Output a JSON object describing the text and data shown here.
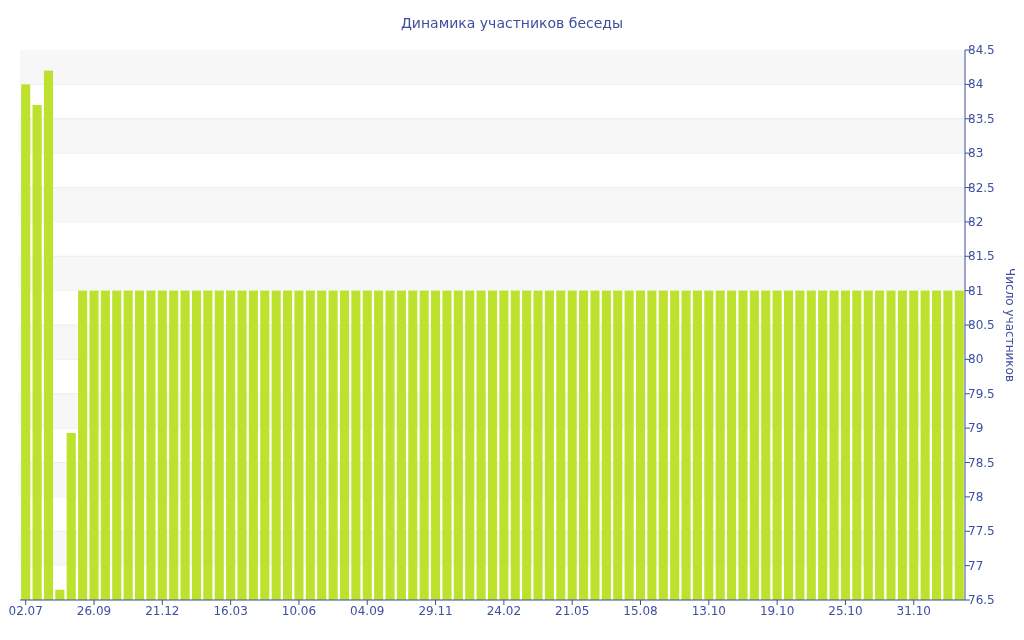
{
  "chart_data": {
    "type": "bar",
    "title": "Динамика участников беседы",
    "ylabel": "Число участников",
    "categories": [
      "02.07",
      null,
      null,
      null,
      null,
      null,
      "26.09",
      null,
      null,
      null,
      null,
      null,
      "21.12",
      null,
      null,
      null,
      null,
      null,
      "16.03",
      null,
      null,
      null,
      null,
      null,
      "10.06",
      null,
      null,
      null,
      null,
      null,
      "04.09",
      null,
      null,
      null,
      null,
      null,
      "29.11",
      null,
      null,
      null,
      null,
      null,
      "24.02",
      null,
      null,
      null,
      null,
      null,
      "21.05",
      null,
      null,
      null,
      null,
      null,
      "15.08",
      null,
      null,
      null,
      null,
      null,
      "13.10",
      null,
      null,
      null,
      null,
      null,
      "19.10",
      null,
      null,
      null,
      null,
      null,
      "25.10",
      null,
      null,
      null,
      null,
      null,
      "31.10",
      null,
      null,
      null,
      null
    ],
    "values": [
      84,
      83.7,
      84.2,
      76.65,
      78.93,
      81,
      81,
      81,
      81,
      81,
      81,
      81,
      81,
      81,
      81,
      81,
      81,
      81,
      81,
      81,
      81,
      81,
      81,
      81,
      81,
      81,
      81,
      81,
      81,
      81,
      81,
      81,
      81,
      81,
      81,
      81,
      81,
      81,
      81,
      81,
      81,
      81,
      81,
      81,
      81,
      81,
      81,
      81,
      81,
      81,
      81,
      81,
      81,
      81,
      81,
      81,
      81,
      81,
      81,
      81,
      81,
      81,
      81,
      81,
      81,
      81,
      81,
      81,
      81,
      81,
      81,
      81,
      81,
      81,
      81,
      81,
      81,
      81,
      81,
      81,
      81,
      81,
      81
    ],
    "color": "#bde22e",
    "ylim": [
      76.5,
      84.5
    ],
    "yticks": [
      76.5,
      77,
      77.5,
      78,
      78.5,
      79,
      79.5,
      80,
      80.5,
      81,
      81.5,
      82,
      82.5,
      83,
      83.5,
      84,
      84.5
    ],
    "grid": "y"
  }
}
